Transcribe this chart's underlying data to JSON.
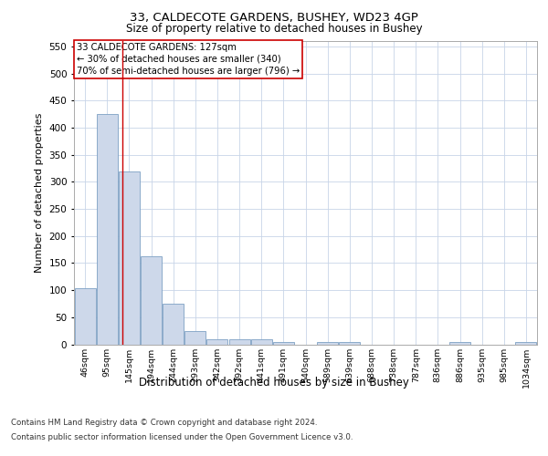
{
  "title1": "33, CALDECOTE GARDENS, BUSHEY, WD23 4GP",
  "title2": "Size of property relative to detached houses in Bushey",
  "xlabel": "Distribution of detached houses by size in Bushey",
  "ylabel": "Number of detached properties",
  "categories": [
    "46sqm",
    "95sqm",
    "145sqm",
    "194sqm",
    "244sqm",
    "293sqm",
    "342sqm",
    "392sqm",
    "441sqm",
    "491sqm",
    "540sqm",
    "589sqm",
    "639sqm",
    "688sqm",
    "738sqm",
    "787sqm",
    "836sqm",
    "886sqm",
    "935sqm",
    "985sqm",
    "1034sqm"
  ],
  "values": [
    103,
    425,
    320,
    163,
    75,
    25,
    10,
    10,
    10,
    5,
    0,
    5,
    5,
    0,
    0,
    0,
    0,
    5,
    0,
    0,
    5
  ],
  "bar_color": "#cdd8ea",
  "bar_edge_color": "#7da0c4",
  "red_line_x": 1.68,
  "annotation_text": "33 CALDECOTE GARDENS: 127sqm\n← 30% of detached houses are smaller (340)\n70% of semi-detached houses are larger (796) →",
  "annotation_box_color": "#ffffff",
  "annotation_box_edge": "#cc0000",
  "ylim": [
    0,
    560
  ],
  "yticks": [
    0,
    50,
    100,
    150,
    200,
    250,
    300,
    350,
    400,
    450,
    500,
    550
  ],
  "footer1": "Contains HM Land Registry data © Crown copyright and database right 2024.",
  "footer2": "Contains public sector information licensed under the Open Government Licence v3.0.",
  "bg_color": "#ffffff",
  "grid_color": "#c8d4e8"
}
